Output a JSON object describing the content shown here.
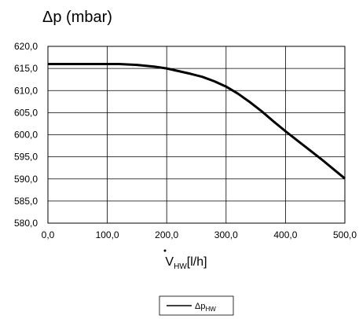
{
  "chart_data": {
    "type": "line",
    "title": "Δp (mbar)",
    "xlabel": {
      "main": "V",
      "sub": "HW",
      "unit": "[l/h]"
    },
    "ylabel": "",
    "xlim": [
      0,
      500
    ],
    "ylim": [
      580,
      620
    ],
    "xticks": [
      "0,0",
      "100,0",
      "200,0",
      "300,0",
      "400,0",
      "500,0"
    ],
    "yticks": [
      "620,0",
      "615,0",
      "610,0",
      "605,0",
      "600,0",
      "595,0",
      "590,0",
      "585,0",
      "580,0"
    ],
    "grid": true,
    "legend_position": "bottom-center",
    "series": [
      {
        "name": {
          "main": "Δp",
          "sub": "HW"
        },
        "color": "#000000",
        "x": [
          0,
          50,
          100,
          120,
          150,
          180,
          200,
          220,
          240,
          260,
          280,
          300,
          320,
          340,
          360,
          380,
          400,
          420,
          440,
          460,
          480,
          500
        ],
        "y": [
          616.0,
          616.0,
          616.0,
          616.0,
          615.8,
          615.4,
          615.0,
          614.4,
          613.8,
          613.1,
          612.1,
          610.9,
          609.3,
          607.4,
          605.3,
          603.0,
          600.8,
          598.7,
          596.6,
          594.5,
          592.3,
          590.1
        ]
      }
    ]
  }
}
